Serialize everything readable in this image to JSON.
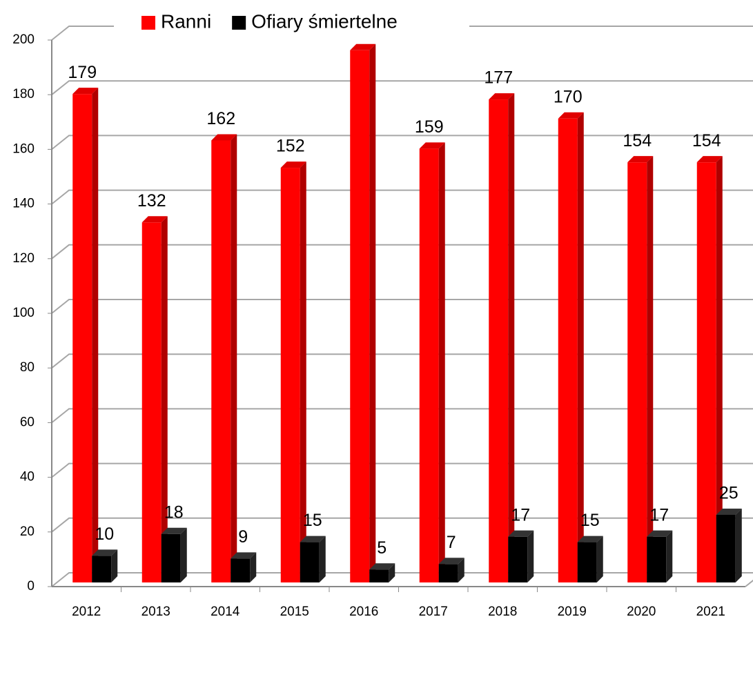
{
  "chart_data": {
    "type": "bar3d",
    "categories": [
      "2012",
      "2013",
      "2014",
      "2015",
      "2016",
      "2017",
      "2018",
      "2019",
      "2020",
      "2021"
    ],
    "series": [
      {
        "name": "Ranni",
        "color": "#ff0000",
        "values": [
          179,
          132,
          162,
          152,
          195,
          159,
          177,
          170,
          154,
          154
        ],
        "value_labels": [
          "179",
          "132",
          "162",
          "152",
          null,
          "159",
          "177",
          "170",
          "154",
          "154"
        ]
      },
      {
        "name": "Ofiary śmiertelne",
        "color": "#000000",
        "values": [
          10,
          18,
          9,
          15,
          5,
          7,
          17,
          15,
          17,
          25
        ]
      }
    ],
    "ylim": [
      0,
      200
    ],
    "yticks": [
      0,
      20,
      40,
      60,
      80,
      100,
      120,
      140,
      160,
      180,
      200
    ],
    "grid": true,
    "legend": "top"
  }
}
